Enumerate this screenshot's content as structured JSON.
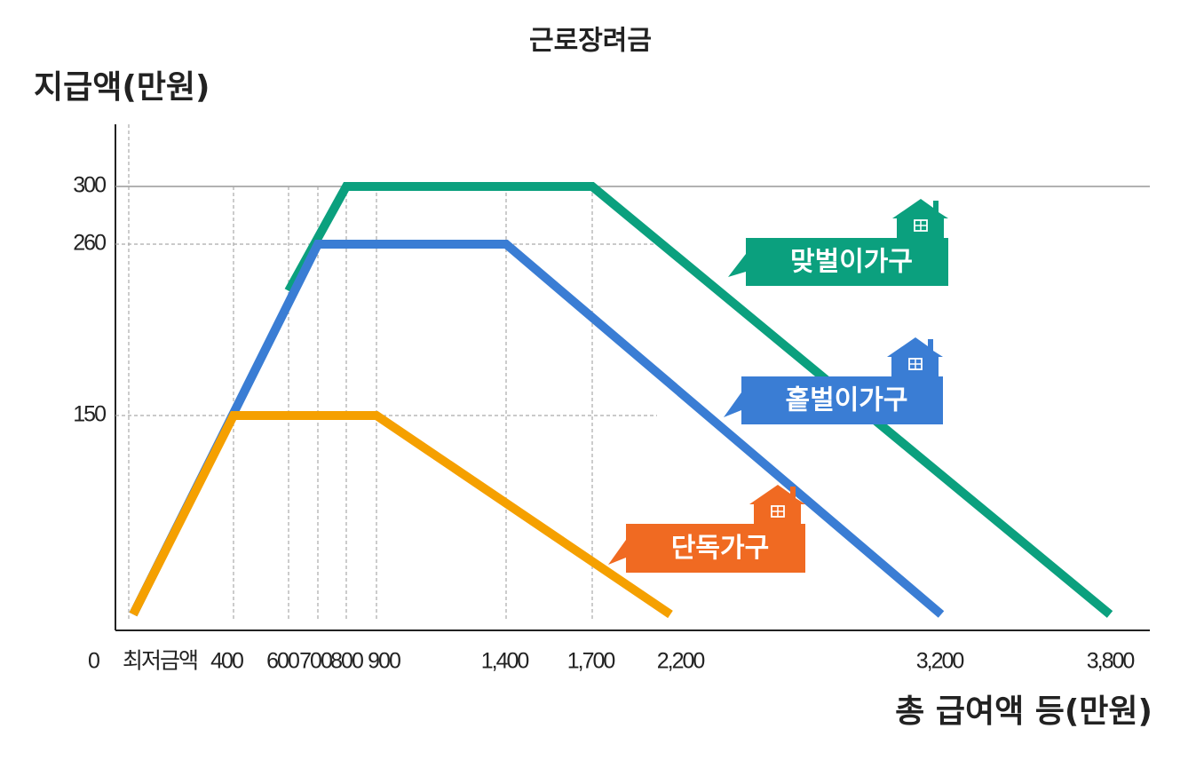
{
  "chart_data": {
    "type": "line",
    "title": "근로장려금",
    "y_label": "지급액(만원)",
    "x_label": "총 급여액 등(만원)",
    "categories": [
      "0",
      "최저금액",
      "400",
      "600",
      "700",
      "800",
      "900",
      "1,400",
      "1,700",
      "2,200",
      "3,200",
      "3,800"
    ],
    "series": [
      {
        "name": "맞벌이가구",
        "color": "#0ba07e",
        "label_color": "#0ba07e",
        "x": [
          "600",
          "800",
          "1,700",
          "3,800"
        ],
        "values": [
          230,
          300,
          300,
          0
        ]
      },
      {
        "name": "홑벌이가구",
        "color": "#3a7dd4",
        "label_color": "#3a7dd4",
        "x": [
          "최저금액",
          "700",
          "1,400",
          "3,200"
        ],
        "values": [
          0,
          260,
          260,
          0
        ]
      },
      {
        "name": "단독가구",
        "color": "#f5a000",
        "label_color": "#f06a22",
        "x": [
          "최저금액",
          "400",
          "900",
          "2,200"
        ],
        "values": [
          0,
          150,
          150,
          0
        ]
      }
    ],
    "ylim": [
      0,
      340
    ],
    "yticks": [
      150,
      260,
      300
    ],
    "grid": true
  }
}
